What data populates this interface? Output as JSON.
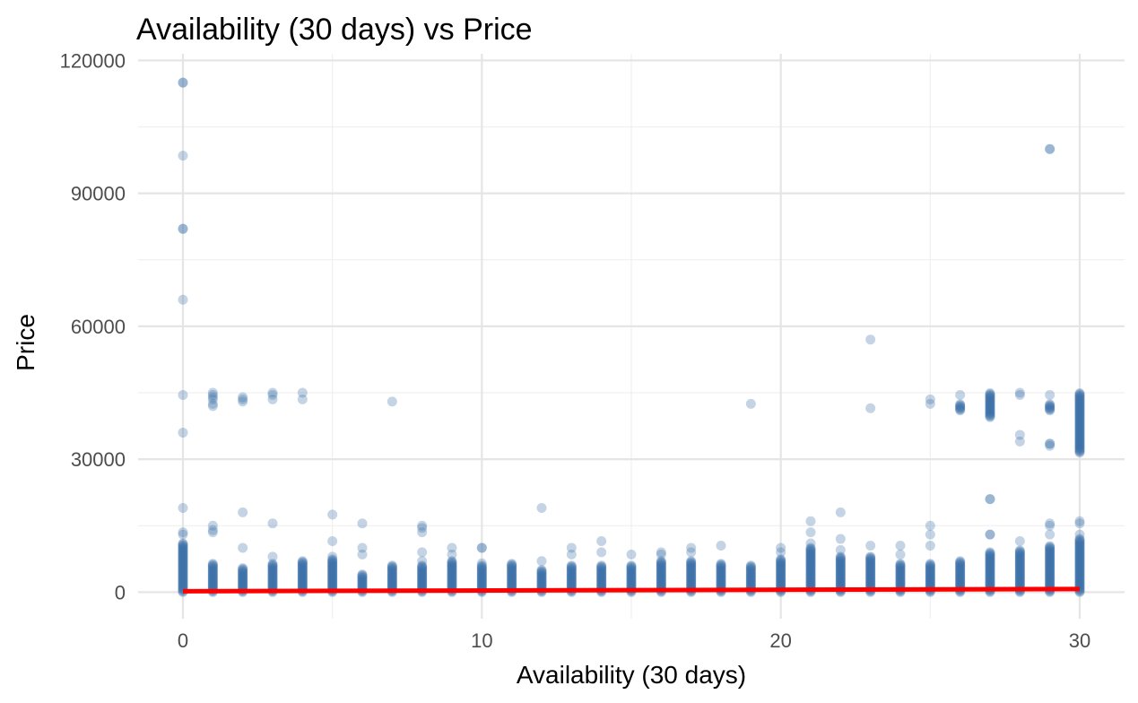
{
  "chart_data": {
    "type": "scatter",
    "title": "Availability (30 days) vs Price",
    "xlabel": "Availability (30 days)",
    "ylabel": "Price",
    "xlim": [
      -1.5,
      31.5
    ],
    "ylim": [
      -6000,
      121500
    ],
    "x_ticks": [
      0,
      10,
      20,
      30
    ],
    "x_tick_labels": [
      "0",
      "10",
      "20",
      "30"
    ],
    "x_minor_ticks": [
      5,
      15,
      25
    ],
    "y_ticks": [
      0,
      30000,
      60000,
      90000,
      120000
    ],
    "y_tick_labels": [
      "0",
      "30000",
      "60000",
      "90000",
      "120000"
    ],
    "y_minor_ticks": [
      15000,
      45000,
      75000,
      105000
    ],
    "grid": true,
    "legend": "none",
    "colors": {
      "points": "#3b6fa8",
      "trend": "#ff0000",
      "grid_major": "#e5e5e5",
      "grid_minor": "#f0f0f0"
    },
    "point_opacity": 0.3,
    "point_bands": [
      {
        "x": 0,
        "from": 0,
        "to": 11000
      },
      {
        "x": 1,
        "from": 0,
        "to": 6500
      },
      {
        "x": 2,
        "from": 0,
        "to": 5500
      },
      {
        "x": 3,
        "from": 0,
        "to": 6500
      },
      {
        "x": 4,
        "from": 0,
        "to": 7000
      },
      {
        "x": 5,
        "from": 0,
        "to": 7500
      },
      {
        "x": 6,
        "from": 0,
        "to": 4000
      },
      {
        "x": 7,
        "from": 0,
        "to": 6000
      },
      {
        "x": 8,
        "from": 0,
        "to": 6000
      },
      {
        "x": 9,
        "from": 0,
        "to": 7000
      },
      {
        "x": 10,
        "from": 0,
        "to": 6000
      },
      {
        "x": 11,
        "from": 0,
        "to": 6500
      },
      {
        "x": 12,
        "from": 0,
        "to": 5000
      },
      {
        "x": 13,
        "from": 0,
        "to": 6000
      },
      {
        "x": 14,
        "from": 0,
        "to": 6000
      },
      {
        "x": 15,
        "from": 0,
        "to": 6000
      },
      {
        "x": 16,
        "from": 0,
        "to": 7000
      },
      {
        "x": 17,
        "from": 0,
        "to": 7000
      },
      {
        "x": 18,
        "from": 0,
        "to": 6500
      },
      {
        "x": 19,
        "from": 0,
        "to": 6000
      },
      {
        "x": 20,
        "from": 0,
        "to": 7500
      },
      {
        "x": 21,
        "from": 0,
        "to": 10000
      },
      {
        "x": 22,
        "from": 0,
        "to": 8000
      },
      {
        "x": 23,
        "from": 0,
        "to": 8000
      },
      {
        "x": 24,
        "from": 0,
        "to": 6500
      },
      {
        "x": 25,
        "from": 0,
        "to": 6500
      },
      {
        "x": 26,
        "from": 0,
        "to": 7000
      },
      {
        "x": 27,
        "from": 0,
        "to": 9000
      },
      {
        "x": 28,
        "from": 0,
        "to": 9500
      },
      {
        "x": 29,
        "from": 0,
        "to": 10500
      },
      {
        "x": 30,
        "from": 0,
        "to": 12000
      },
      {
        "x": 26,
        "from": 41000,
        "to": 42500
      },
      {
        "x": 27,
        "from": 39500,
        "to": 45000
      },
      {
        "x": 29,
        "from": 41000,
        "to": 42500
      },
      {
        "x": 30,
        "from": 31500,
        "to": 45000
      }
    ],
    "points": [
      {
        "x": 0,
        "y": 115000
      },
      {
        "x": 0,
        "y": 115000
      },
      {
        "x": 0,
        "y": 98500
      },
      {
        "x": 0,
        "y": 82000
      },
      {
        "x": 0,
        "y": 82000
      },
      {
        "x": 0,
        "y": 66000
      },
      {
        "x": 0,
        "y": 44500
      },
      {
        "x": 0,
        "y": 36000
      },
      {
        "x": 0,
        "y": 19000
      },
      {
        "x": 0,
        "y": 13500
      },
      {
        "x": 0,
        "y": 13000
      },
      {
        "x": 1,
        "y": 45000
      },
      {
        "x": 1,
        "y": 44500
      },
      {
        "x": 1,
        "y": 44000
      },
      {
        "x": 1,
        "y": 43500
      },
      {
        "x": 1,
        "y": 42500
      },
      {
        "x": 1,
        "y": 42000
      },
      {
        "x": 1,
        "y": 15000
      },
      {
        "x": 1,
        "y": 14000
      },
      {
        "x": 1,
        "y": 13500
      },
      {
        "x": 2,
        "y": 44000
      },
      {
        "x": 2,
        "y": 43500
      },
      {
        "x": 2,
        "y": 43000
      },
      {
        "x": 2,
        "y": 18000
      },
      {
        "x": 2,
        "y": 10000
      },
      {
        "x": 3,
        "y": 45000
      },
      {
        "x": 3,
        "y": 44500
      },
      {
        "x": 3,
        "y": 43500
      },
      {
        "x": 3,
        "y": 15500
      },
      {
        "x": 3,
        "y": 8000
      },
      {
        "x": 4,
        "y": 45000
      },
      {
        "x": 4,
        "y": 43500
      },
      {
        "x": 5,
        "y": 17500
      },
      {
        "x": 5,
        "y": 11500
      },
      {
        "x": 5,
        "y": 8000
      },
      {
        "x": 6,
        "y": 15500
      },
      {
        "x": 6,
        "y": 10000
      },
      {
        "x": 6,
        "y": 8500
      },
      {
        "x": 7,
        "y": 43000
      },
      {
        "x": 8,
        "y": 15000
      },
      {
        "x": 8,
        "y": 14500
      },
      {
        "x": 8,
        "y": 13500
      },
      {
        "x": 8,
        "y": 9000
      },
      {
        "x": 8,
        "y": 7000
      },
      {
        "x": 9,
        "y": 10000
      },
      {
        "x": 9,
        "y": 8500
      },
      {
        "x": 10,
        "y": 10000
      },
      {
        "x": 10,
        "y": 10000
      },
      {
        "x": 10,
        "y": 6500
      },
      {
        "x": 12,
        "y": 19000
      },
      {
        "x": 12,
        "y": 7000
      },
      {
        "x": 13,
        "y": 10000
      },
      {
        "x": 13,
        "y": 8500
      },
      {
        "x": 14,
        "y": 11500
      },
      {
        "x": 14,
        "y": 9000
      },
      {
        "x": 15,
        "y": 8500
      },
      {
        "x": 16,
        "y": 9000
      },
      {
        "x": 16,
        "y": 8500
      },
      {
        "x": 17,
        "y": 10000
      },
      {
        "x": 17,
        "y": 9000
      },
      {
        "x": 18,
        "y": 10500
      },
      {
        "x": 19,
        "y": 42500
      },
      {
        "x": 20,
        "y": 10000
      },
      {
        "x": 20,
        "y": 9000
      },
      {
        "x": 21,
        "y": 16000
      },
      {
        "x": 21,
        "y": 13500
      },
      {
        "x": 21,
        "y": 11000
      },
      {
        "x": 22,
        "y": 18000
      },
      {
        "x": 22,
        "y": 12000
      },
      {
        "x": 22,
        "y": 9500
      },
      {
        "x": 23,
        "y": 57000
      },
      {
        "x": 23,
        "y": 41500
      },
      {
        "x": 23,
        "y": 10500
      },
      {
        "x": 24,
        "y": 10500
      },
      {
        "x": 24,
        "y": 8500
      },
      {
        "x": 25,
        "y": 43500
      },
      {
        "x": 25,
        "y": 42500
      },
      {
        "x": 25,
        "y": 15000
      },
      {
        "x": 25,
        "y": 13000
      },
      {
        "x": 25,
        "y": 10500
      },
      {
        "x": 26,
        "y": 44500
      },
      {
        "x": 27,
        "y": 21000
      },
      {
        "x": 27,
        "y": 21000
      },
      {
        "x": 27,
        "y": 13000
      },
      {
        "x": 27,
        "y": 13000
      },
      {
        "x": 28,
        "y": 45000
      },
      {
        "x": 28,
        "y": 44500
      },
      {
        "x": 28,
        "y": 35500
      },
      {
        "x": 28,
        "y": 34000
      },
      {
        "x": 28,
        "y": 11500
      },
      {
        "x": 29,
        "y": 100000
      },
      {
        "x": 29,
        "y": 100000
      },
      {
        "x": 29,
        "y": 44500
      },
      {
        "x": 29,
        "y": 33500
      },
      {
        "x": 29,
        "y": 33500
      },
      {
        "x": 29,
        "y": 33000
      },
      {
        "x": 29,
        "y": 15500
      },
      {
        "x": 29,
        "y": 15000
      },
      {
        "x": 29,
        "y": 13000
      },
      {
        "x": 30,
        "y": 16000
      },
      {
        "x": 30,
        "y": 15500
      },
      {
        "x": 30,
        "y": 13000
      }
    ],
    "trend_line": {
      "x": [
        0,
        30
      ],
      "y": [
        200,
        700
      ]
    }
  }
}
